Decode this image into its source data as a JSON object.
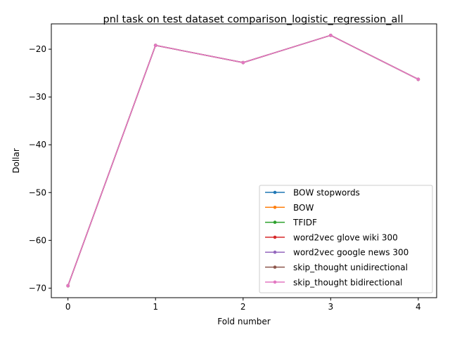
{
  "chart_data": {
    "type": "line",
    "title": "pnl task on test dataset comparison_logistic_regression_all",
    "xlabel": "Fold number",
    "ylabel": "Dollar",
    "x": [
      0,
      1,
      2,
      3,
      4
    ],
    "xticks": [
      "0",
      "1",
      "2",
      "3",
      "4"
    ],
    "yticks": [
      "−70",
      "−60",
      "−50",
      "−40",
      "−30",
      "−20"
    ],
    "ytick_values": [
      -70,
      -60,
      -50,
      -40,
      -30,
      -20
    ],
    "xlim": [
      -0.19,
      4.21
    ],
    "ylim": [
      -72.0,
      -14.7
    ],
    "grid": false,
    "legend_position": "lower-right",
    "series": [
      {
        "name": "BOW stopwords",
        "color": "#1f77b4",
        "values": [
          -69.5,
          -19.2,
          -22.8,
          -17.1,
          -26.3
        ]
      },
      {
        "name": "BOW",
        "color": "#ff7f0e",
        "values": [
          -69.5,
          -19.2,
          -22.8,
          -17.1,
          -26.3
        ]
      },
      {
        "name": "TFIDF",
        "color": "#2ca02c",
        "values": [
          -69.5,
          -19.2,
          -22.8,
          -17.1,
          -26.3
        ]
      },
      {
        "name": "word2vec glove wiki 300",
        "color": "#d62728",
        "values": [
          -69.5,
          -19.2,
          -22.8,
          -17.1,
          -26.3
        ]
      },
      {
        "name": "word2vec google news 300",
        "color": "#9467bd",
        "values": [
          -69.5,
          -19.2,
          -22.8,
          -17.1,
          -26.3
        ]
      },
      {
        "name": "skip_thought unidirectional",
        "color": "#8c564b",
        "values": [
          -69.5,
          -19.2,
          -22.8,
          -17.1,
          -26.3
        ]
      },
      {
        "name": "skip_thought bidirectional",
        "color": "#e377c2",
        "values": [
          -69.5,
          -19.2,
          -22.8,
          -17.1,
          -26.3
        ]
      }
    ]
  }
}
